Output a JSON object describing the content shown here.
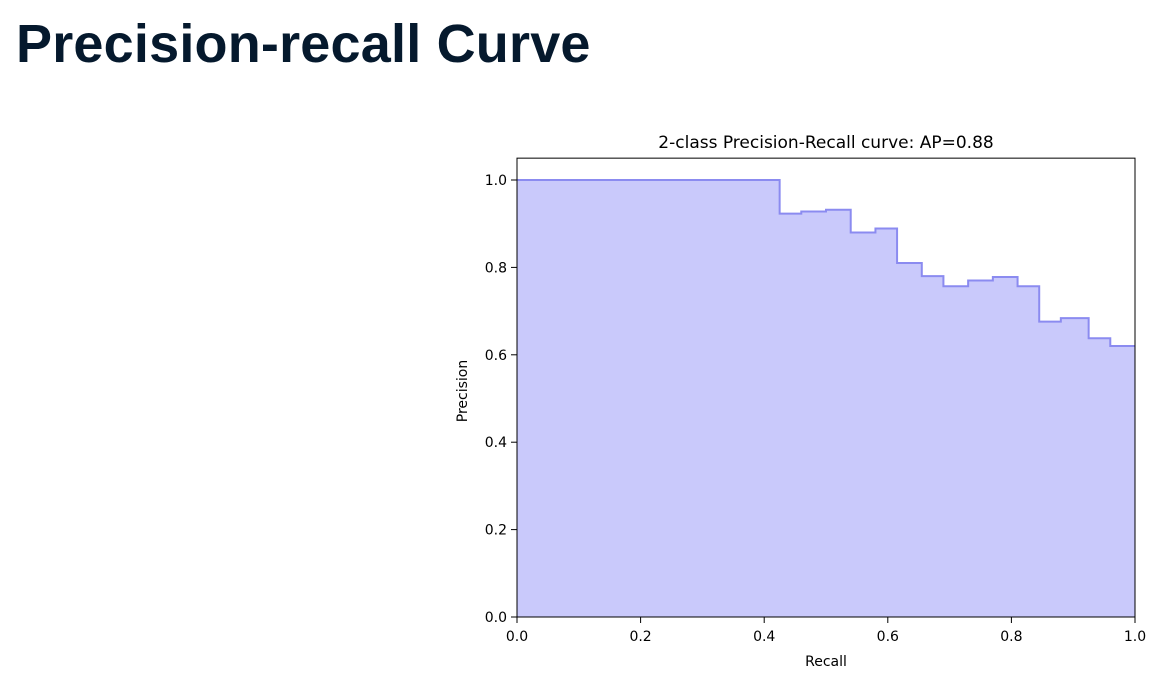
{
  "page": {
    "title": "Precision-recall Curve"
  },
  "chart_data": {
    "type": "area",
    "title": "2-class Precision-Recall curve: AP=0.88",
    "xlabel": "Recall",
    "ylabel": "Precision",
    "xlim": [
      0.0,
      1.0
    ],
    "ylim": [
      0.0,
      1.05
    ],
    "xticks": [
      "0.0",
      "0.2",
      "0.4",
      "0.6",
      "0.8",
      "1.0"
    ],
    "yticks": [
      "0.0",
      "0.2",
      "0.4",
      "0.6",
      "0.8",
      "1.0"
    ],
    "step": "post",
    "grid": false,
    "fill_color": "#c9c9fb",
    "line_color": "#8b8bf0",
    "series": [
      {
        "x": [
          0.0,
          0.425,
          0.46,
          0.5,
          0.54,
          0.58,
          0.615,
          0.655,
          0.69,
          0.73,
          0.77,
          0.81,
          0.845,
          0.88,
          0.925,
          0.96,
          1.0
        ],
        "y": [
          1.0,
          0.923,
          0.928,
          0.932,
          0.88,
          0.889,
          0.81,
          0.78,
          0.757,
          0.77,
          0.778,
          0.757,
          0.676,
          0.684,
          0.638,
          0.62,
          0.62
        ]
      }
    ]
  }
}
